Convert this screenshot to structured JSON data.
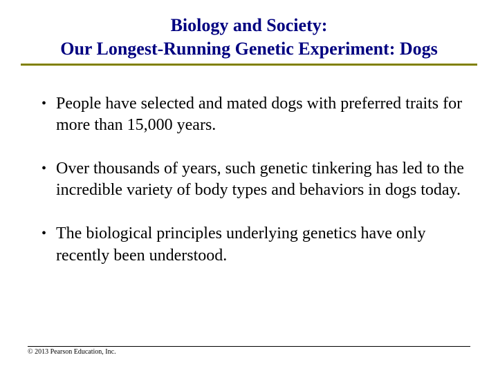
{
  "title": {
    "line1": "Biology and Society:",
    "line2": "Our Longest-Running Genetic Experiment: Dogs",
    "color": "#000080",
    "fontsize": 26,
    "underline_color": "#808000"
  },
  "bullets": [
    "People have selected and mated dogs with preferred traits for more than 15,000 years.",
    "Over thousands of years, such genetic tinkering has led to the incredible variety of body types and behaviors in dogs today.",
    "The biological principles underlying genetics have only recently been understood."
  ],
  "bullet_fontsize": 24,
  "bullet_color": "#000000",
  "copyright": "© 2013 Pearson Education, Inc.",
  "background_color": "#ffffff"
}
